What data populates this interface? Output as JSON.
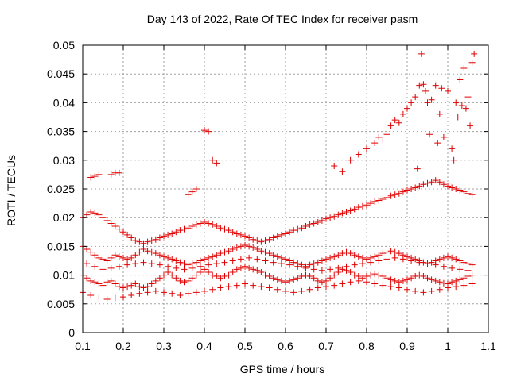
{
  "chart_data": {
    "type": "scatter",
    "title": "Day 143 of 2022, Rate Of TEC Index for receiver pasm",
    "xlabel": "GPS time / hours",
    "ylabel": "ROTI / TECUs",
    "xlim": [
      0.1,
      1.1
    ],
    "ylim": [
      0,
      0.05
    ],
    "xticks": [
      "0.1",
      "0.2",
      "0.3",
      "0.4",
      "0.5",
      "0.6",
      "0.7",
      "0.8",
      "0.9",
      "1",
      "1.1"
    ],
    "yticks": [
      "0",
      "0.005",
      "0.01",
      "0.015",
      "0.02",
      "0.025",
      "0.03",
      "0.035",
      "0.04",
      "0.045",
      "0.05"
    ],
    "grid": true,
    "marker": "plus",
    "marker_color": "#e00000",
    "series": [
      {
        "x": [
          0.1,
          0.11,
          0.12,
          0.13,
          0.14,
          0.15,
          0.16,
          0.17,
          0.18,
          0.19,
          0.2,
          0.21,
          0.22,
          0.23,
          0.24,
          0.25,
          0.26,
          0.27,
          0.28,
          0.29,
          0.3,
          0.31,
          0.32,
          0.33,
          0.34,
          0.35,
          0.36,
          0.37,
          0.38,
          0.39,
          0.4,
          0.41,
          0.42,
          0.43,
          0.44,
          0.45,
          0.46,
          0.47,
          0.48,
          0.49,
          0.5,
          0.51,
          0.52,
          0.53,
          0.54,
          0.55,
          0.56,
          0.57,
          0.58,
          0.59,
          0.6,
          0.61,
          0.62,
          0.63,
          0.64,
          0.65,
          0.66,
          0.67,
          0.68,
          0.69,
          0.7,
          0.71,
          0.72,
          0.73,
          0.74,
          0.75,
          0.76,
          0.77,
          0.78,
          0.79,
          0.8,
          0.81,
          0.82,
          0.83,
          0.84,
          0.85,
          0.86,
          0.87,
          0.88,
          0.89,
          0.9,
          0.91,
          0.92,
          0.93,
          0.94,
          0.95,
          0.96,
          0.97,
          0.98,
          0.99,
          1.0,
          1.01,
          1.02,
          1.03,
          1.04,
          1.05,
          1.06,
          0.1,
          0.11,
          0.12,
          0.13,
          0.14,
          0.15,
          0.16,
          0.17,
          0.18,
          0.19,
          0.2,
          0.21,
          0.22,
          0.23,
          0.24,
          0.25,
          0.26,
          0.27,
          0.28,
          0.29,
          0.3,
          0.31,
          0.32,
          0.33,
          0.34,
          0.35,
          0.36,
          0.37,
          0.38,
          0.39,
          0.4,
          0.41,
          0.42,
          0.43,
          0.44,
          0.45,
          0.46,
          0.47,
          0.48,
          0.49,
          0.5,
          0.51,
          0.52,
          0.53,
          0.54,
          0.55,
          0.56,
          0.57,
          0.58,
          0.59,
          0.6,
          0.61,
          0.62,
          0.63,
          0.64,
          0.65,
          0.66,
          0.67,
          0.68,
          0.69,
          0.7,
          0.71,
          0.72,
          0.73,
          0.74,
          0.75,
          0.76,
          0.77,
          0.78,
          0.79,
          0.8,
          0.81,
          0.82,
          0.83,
          0.84,
          0.85,
          0.86,
          0.87,
          0.88,
          0.89,
          0.9,
          0.91,
          0.92,
          0.93,
          0.94,
          0.95,
          0.96,
          0.97,
          0.98,
          0.99,
          1.0,
          1.01,
          1.02,
          1.03,
          1.04,
          1.05,
          1.06,
          0.1,
          0.11,
          0.12,
          0.13,
          0.14,
          0.15,
          0.16,
          0.17,
          0.18,
          0.19,
          0.2,
          0.21,
          0.22,
          0.23,
          0.24,
          0.25,
          0.26,
          0.27,
          0.28,
          0.29,
          0.3,
          0.31,
          0.32,
          0.33,
          0.34,
          0.35,
          0.36,
          0.37,
          0.38,
          0.39,
          0.4,
          0.41,
          0.42,
          0.43,
          0.44,
          0.45,
          0.46,
          0.47,
          0.48,
          0.49,
          0.5,
          0.51,
          0.52,
          0.53,
          0.54,
          0.55,
          0.56,
          0.57,
          0.58,
          0.59,
          0.6,
          0.61,
          0.62,
          0.63,
          0.64,
          0.65,
          0.66,
          0.67,
          0.68,
          0.69,
          0.7,
          0.71,
          0.72,
          0.73,
          0.74,
          0.75,
          0.76,
          0.77,
          0.78,
          0.79,
          0.8,
          0.81,
          0.82,
          0.83,
          0.84,
          0.85,
          0.86,
          0.87,
          0.88,
          0.89,
          0.9,
          0.91,
          0.92,
          0.93,
          0.94,
          0.95,
          0.96,
          0.97,
          0.98,
          0.99,
          1.0,
          1.01,
          1.02,
          1.03,
          1.04,
          1.05,
          1.06,
          0.1,
          0.12,
          0.14,
          0.16,
          0.18,
          0.2,
          0.22,
          0.24,
          0.26,
          0.28,
          0.3,
          0.32,
          0.34,
          0.36,
          0.38,
          0.4,
          0.42,
          0.44,
          0.46,
          0.48,
          0.5,
          0.52,
          0.54,
          0.56,
          0.58,
          0.6,
          0.62,
          0.64,
          0.66,
          0.68,
          0.7,
          0.72,
          0.74,
          0.76,
          0.78,
          0.8,
          0.82,
          0.84,
          0.86,
          0.88,
          0.9,
          0.92,
          0.94,
          0.96,
          0.98,
          1.0,
          1.02,
          1.04,
          1.06,
          0.11,
          0.13,
          0.15,
          0.17,
          0.19,
          0.21,
          0.23,
          0.25,
          0.27,
          0.29,
          0.31,
          0.33,
          0.35,
          0.37,
          0.39,
          0.41,
          0.43,
          0.45,
          0.47,
          0.49,
          0.51,
          0.53,
          0.55,
          0.57,
          0.59,
          0.61,
          0.63,
          0.65,
          0.67,
          0.69,
          0.71,
          0.73,
          0.75,
          0.77,
          0.79,
          0.81,
          0.83,
          0.85,
          0.87,
          0.89,
          0.91,
          0.93,
          0.95,
          0.97,
          0.99,
          1.01,
          1.03,
          1.05,
          0.12,
          0.13,
          0.14,
          0.17,
          0.18,
          0.19,
          0.36,
          0.37,
          0.38,
          0.4,
          0.41,
          0.42,
          0.43,
          0.72,
          0.74,
          0.76,
          0.78,
          0.8,
          0.82,
          0.83,
          0.84,
          0.85,
          0.86,
          0.87,
          0.88,
          0.89,
          0.9,
          0.91,
          0.92,
          0.93,
          0.94,
          0.95,
          0.96,
          0.97,
          0.98,
          0.99,
          1.0,
          1.01,
          1.02,
          1.03,
          1.04,
          1.05,
          1.06,
          1.065,
          0.935,
          0.945,
          1.045,
          1.055,
          0.975,
          1.015,
          0.925,
          0.955,
          0.985,
          1.035,
          1.025
        ],
        "y": [
          0.01,
          0.0095,
          0.009,
          0.0088,
          0.0085,
          0.0082,
          0.0088,
          0.009,
          0.0085,
          0.008,
          0.0078,
          0.008,
          0.0082,
          0.0085,
          0.008,
          0.0078,
          0.008,
          0.0085,
          0.009,
          0.0095,
          0.01,
          0.0105,
          0.01,
          0.0095,
          0.009,
          0.0088,
          0.009,
          0.0095,
          0.01,
          0.0105,
          0.011,
          0.0105,
          0.01,
          0.0098,
          0.0095,
          0.0098,
          0.01,
          0.0105,
          0.011,
          0.0112,
          0.0115,
          0.0112,
          0.011,
          0.0108,
          0.0105,
          0.01,
          0.0098,
          0.0095,
          0.0092,
          0.009,
          0.0088,
          0.009,
          0.0092,
          0.0095,
          0.0098,
          0.01,
          0.0098,
          0.0095,
          0.009,
          0.0088,
          0.009,
          0.0095,
          0.01,
          0.0105,
          0.011,
          0.0108,
          0.0105,
          0.01,
          0.0098,
          0.0095,
          0.0098,
          0.01,
          0.0102,
          0.01,
          0.0098,
          0.0095,
          0.0092,
          0.009,
          0.0088,
          0.009,
          0.0092,
          0.0095,
          0.0098,
          0.01,
          0.0098,
          0.0095,
          0.0092,
          0.009,
          0.0088,
          0.0086,
          0.0085,
          0.0088,
          0.009,
          0.0092,
          0.0095,
          0.0098,
          0.01,
          0.015,
          0.0145,
          0.014,
          0.0135,
          0.013,
          0.0128,
          0.0125,
          0.013,
          0.0135,
          0.0132,
          0.013,
          0.0128,
          0.013,
          0.0135,
          0.014,
          0.0145,
          0.0142,
          0.014,
          0.0138,
          0.0135,
          0.0132,
          0.013,
          0.0128,
          0.0125,
          0.0122,
          0.012,
          0.0118,
          0.012,
          0.0122,
          0.0125,
          0.0128,
          0.013,
          0.0132,
          0.0135,
          0.0138,
          0.014,
          0.0142,
          0.0145,
          0.0148,
          0.015,
          0.0152,
          0.015,
          0.0148,
          0.0145,
          0.0142,
          0.014,
          0.0138,
          0.0135,
          0.0132,
          0.013,
          0.0128,
          0.0125,
          0.0122,
          0.012,
          0.0118,
          0.0115,
          0.0118,
          0.012,
          0.0122,
          0.0125,
          0.0128,
          0.013,
          0.0132,
          0.0135,
          0.0138,
          0.014,
          0.0138,
          0.0135,
          0.0132,
          0.013,
          0.0128,
          0.013,
          0.0132,
          0.0135,
          0.0138,
          0.014,
          0.0142,
          0.014,
          0.0138,
          0.0135,
          0.0132,
          0.013,
          0.0128,
          0.0125,
          0.0122,
          0.012,
          0.0122,
          0.0125,
          0.0128,
          0.013,
          0.0132,
          0.013,
          0.0128,
          0.0125,
          0.0122,
          0.012,
          0.0118,
          0.02,
          0.0205,
          0.021,
          0.0208,
          0.0205,
          0.02,
          0.0195,
          0.019,
          0.0185,
          0.018,
          0.0175,
          0.017,
          0.0165,
          0.016,
          0.0158,
          0.0155,
          0.0158,
          0.016,
          0.0162,
          0.0165,
          0.0168,
          0.017,
          0.0172,
          0.0175,
          0.0178,
          0.018,
          0.0182,
          0.0185,
          0.0188,
          0.019,
          0.0192,
          0.019,
          0.0188,
          0.0185,
          0.0182,
          0.018,
          0.0178,
          0.0175,
          0.0172,
          0.017,
          0.0168,
          0.0165,
          0.0162,
          0.016,
          0.0158,
          0.016,
          0.0162,
          0.0165,
          0.0168,
          0.017,
          0.0172,
          0.0175,
          0.0178,
          0.018,
          0.0182,
          0.0185,
          0.0188,
          0.019,
          0.0192,
          0.0195,
          0.0198,
          0.02,
          0.0202,
          0.0205,
          0.0208,
          0.021,
          0.0212,
          0.0215,
          0.0218,
          0.022,
          0.0222,
          0.0225,
          0.0228,
          0.023,
          0.0232,
          0.0235,
          0.0238,
          0.024,
          0.0242,
          0.0245,
          0.0248,
          0.025,
          0.0252,
          0.0255,
          0.0258,
          0.026,
          0.0262,
          0.0265,
          0.0262,
          0.0258,
          0.0255,
          0.0252,
          0.025,
          0.0248,
          0.0245,
          0.0242,
          0.024,
          0.007,
          0.0065,
          0.006,
          0.0058,
          0.006,
          0.0062,
          0.0065,
          0.0068,
          0.007,
          0.0072,
          0.007,
          0.0068,
          0.0065,
          0.0068,
          0.007,
          0.0072,
          0.0075,
          0.0078,
          0.008,
          0.0082,
          0.0085,
          0.0082,
          0.008,
          0.0078,
          0.0075,
          0.0072,
          0.007,
          0.0072,
          0.0075,
          0.0078,
          0.008,
          0.0082,
          0.0085,
          0.0088,
          0.009,
          0.0088,
          0.0085,
          0.0082,
          0.008,
          0.0078,
          0.0075,
          0.0072,
          0.007,
          0.0072,
          0.0075,
          0.0078,
          0.008,
          0.0082,
          0.0085,
          0.012,
          0.0115,
          0.011,
          0.0112,
          0.0115,
          0.0118,
          0.012,
          0.0122,
          0.012,
          0.0118,
          0.0115,
          0.0112,
          0.011,
          0.0112,
          0.0115,
          0.0118,
          0.012,
          0.0122,
          0.0125,
          0.0128,
          0.013,
          0.0128,
          0.0125,
          0.0122,
          0.012,
          0.0118,
          0.0115,
          0.0112,
          0.011,
          0.0108,
          0.011,
          0.0112,
          0.0115,
          0.0118,
          0.012,
          0.0122,
          0.0125,
          0.0128,
          0.013,
          0.0128,
          0.0125,
          0.0122,
          0.012,
          0.0118,
          0.0115,
          0.0112,
          0.011,
          0.0108,
          0.027,
          0.0272,
          0.0275,
          0.0275,
          0.0278,
          0.0278,
          0.024,
          0.0245,
          0.025,
          0.0352,
          0.035,
          0.03,
          0.0295,
          0.029,
          0.028,
          0.03,
          0.031,
          0.032,
          0.033,
          0.034,
          0.0335,
          0.0345,
          0.036,
          0.037,
          0.0365,
          0.038,
          0.039,
          0.04,
          0.041,
          0.043,
          0.0432,
          0.04,
          0.0405,
          0.043,
          0.038,
          0.034,
          0.042,
          0.032,
          0.04,
          0.044,
          0.046,
          0.041,
          0.047,
          0.0485,
          0.0485,
          0.042,
          0.039,
          0.036,
          0.033,
          0.03,
          0.0285,
          0.0345,
          0.0425,
          0.0395,
          0.0375
        ]
      }
    ]
  }
}
